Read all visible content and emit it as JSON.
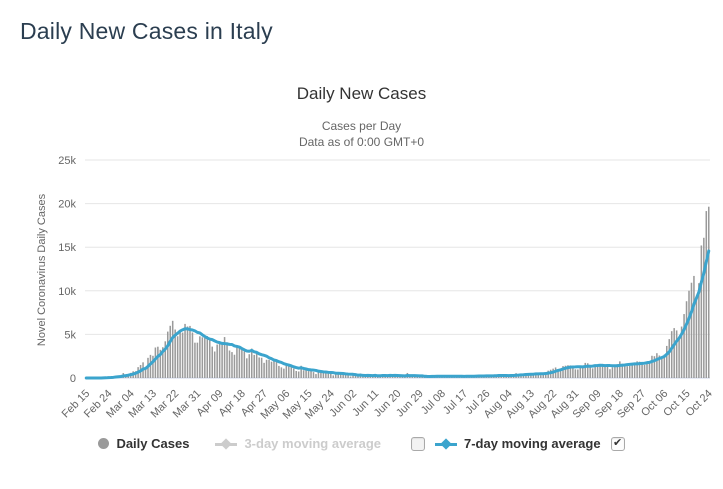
{
  "page": {
    "title": "Daily New Cases in Italy"
  },
  "chart": {
    "title": "Daily New Cases",
    "subtitle_line1": "Cases per Day",
    "subtitle_line2": "Data as of 0:00 GMT+0",
    "y_axis_title": "Novel Coronavirus Daily Cases",
    "colors": {
      "bars": "#9a9a9a",
      "ma7_line": "#3ba4cd",
      "gridline": "#e6e6e6",
      "axis_line": "#ccd6eb",
      "tick_label": "#666666",
      "title_text": "#333333",
      "subtitle_text": "#666666",
      "legend_active_text": "#333333",
      "legend_disabled_text": "#cccccc",
      "page_title_text": "#2b3e50"
    },
    "legend": {
      "daily_cases_label": "Daily Cases",
      "ma3_label": "3-day moving average",
      "ma7_label": "7-day moving average",
      "ma3_checkbox_checked": false,
      "ma7_checkbox_checked": true
    }
  },
  "chart_data": {
    "type": "bar",
    "title": "Daily New Cases",
    "subtitle": "Cases per Day — Data as of 0:00 GMT+0",
    "xlabel": "",
    "ylabel": "Novel Coronavirus Daily Cases",
    "ylim": [
      0,
      25000
    ],
    "y_ticks": [
      0,
      5000,
      10000,
      15000,
      20000,
      25000
    ],
    "y_tick_labels": [
      "0",
      "5k",
      "10k",
      "15k",
      "20k",
      "25k"
    ],
    "x_start": "Feb 15",
    "x_end": "Oct 24",
    "x_tick_interval": 9,
    "x_tick_labels": [
      "Feb 15",
      "Feb 24",
      "Mar 04",
      "Mar 13",
      "Mar 22",
      "Mar 31",
      "Apr 09",
      "Apr 18",
      "Apr 27",
      "May 06",
      "May 15",
      "May 24",
      "Jun 02",
      "Jun 11",
      "Jun 20",
      "Jun 29",
      "Jul 08",
      "Jul 17",
      "Jul 26",
      "Aug 04",
      "Aug 13",
      "Aug 22",
      "Aug 31",
      "Sep 09",
      "Sep 18",
      "Sep 27",
      "Oct 06",
      "Oct 15",
      "Oct 24"
    ],
    "grid": true,
    "legend_position": "bottom",
    "series": [
      {
        "name": "Daily Cases",
        "type": "bar",
        "visible": true,
        "values": [
          0,
          0,
          0,
          0,
          0,
          1,
          17,
          59,
          78,
          150,
          97,
          147,
          250,
          238,
          240,
          566,
          342,
          466,
          587,
          769,
          778,
          1247,
          1492,
          1797,
          977,
          2313,
          2651,
          2547,
          3497,
          3590,
          3233,
          3526,
          4207,
          5322,
          5986,
          6557,
          5560,
          4789,
          5249,
          5210,
          6203,
          5909,
          5974,
          5217,
          4050,
          4053,
          4782,
          4668,
          4585,
          4805,
          4316,
          3599,
          3039,
          3836,
          4204,
          3951,
          4694,
          4092,
          3153,
          2972,
          2667,
          3786,
          3493,
          3491,
          3047,
          2256,
          2729,
          3370,
          2646,
          3021,
          2357,
          2324,
          1739,
          2091,
          2086,
          1872,
          1965,
          1900,
          1389,
          1221,
          1075,
          1444,
          1401,
          1327,
          1083,
          802,
          744,
          1402,
          888,
          992,
          789,
          875,
          675,
          451,
          813,
          665,
          642,
          652,
          669,
          531,
          300,
          397,
          584,
          593,
          516,
          416,
          355,
          178,
          318,
          321,
          177,
          518,
          270,
          197,
          280,
          283,
          202,
          379,
          163,
          346,
          338,
          301,
          210,
          329,
          331,
          251,
          264,
          224,
          221,
          113,
          577,
          296,
          255,
          175,
          174,
          126,
          142,
          187,
          201,
          223,
          235,
          192,
          208,
          138,
          193,
          214,
          276,
          188,
          234,
          169,
          114,
          162,
          230,
          233,
          249,
          218,
          190,
          128,
          282,
          306,
          252,
          274,
          256,
          168,
          212,
          289,
          386,
          379,
          295,
          239,
          159,
          190,
          384,
          402,
          552,
          347,
          463,
          259,
          412,
          481,
          523,
          574,
          629,
          479,
          320,
          403,
          642,
          840,
          947,
          1071,
          1210,
          953,
          878,
          1367,
          1411,
          1462,
          1444,
          1365,
          996,
          978,
          1326,
          1397,
          1733,
          1694,
          1297,
          1108,
          1370,
          1434,
          1597,
          1616,
          1501,
          1458,
          1008,
          1229,
          1452,
          1585,
          1907,
          1638,
          1587,
          1350,
          1392,
          1640,
          1786,
          1912,
          1869,
          1766,
          1494,
          1851,
          1851,
          2548,
          2499,
          2844,
          2578,
          2257,
          2677,
          3678,
          4458,
          5372,
          5724,
          5456,
          4619,
          5901,
          7332,
          8804,
          10010,
          10925,
          11705,
          9338,
          10874,
          15199,
          16079,
          19143,
          19644
        ]
      },
      {
        "name": "3-day moving average",
        "type": "line",
        "visible": false,
        "derived_from": "trailing 3-day mean of Daily Cases"
      },
      {
        "name": "7-day moving average",
        "type": "line",
        "visible": true,
        "derived_from": "trailing 7-day mean of Daily Cases"
      }
    ]
  }
}
